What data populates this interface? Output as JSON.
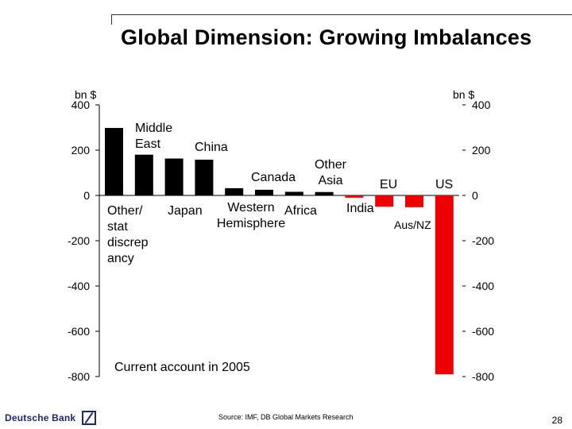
{
  "slide": {
    "title": "Global Dimension: Growing Imbalances",
    "source": "Source: IMF, DB Global Markets  Research",
    "page_number": "28",
    "brand": "Deutsche Bank"
  },
  "colors": {
    "surplus": "#000000",
    "deficit": "#ee0000",
    "axis": "#000000"
  },
  "chart_data": {
    "type": "bar",
    "title": "Current account in 2005",
    "ylabel_left": "bn $",
    "ylabel_right": "bn $",
    "ylim": [
      -800,
      400
    ],
    "yticks": [
      400,
      200,
      0,
      -200,
      -400,
      -600,
      -800
    ],
    "categories": [
      "Other/ stat discrep ancy",
      "Middle East",
      "Japan",
      "China",
      "Western Hemisphere",
      "Canada",
      "Africa",
      "Other Asia",
      "India",
      "EU",
      "Aus/NZ",
      "US"
    ],
    "values": [
      298,
      180,
      163,
      158,
      32,
      25,
      16,
      15,
      -10,
      -50,
      -52,
      -790
    ],
    "category_labels": [
      [
        "Other/",
        "stat",
        "discrep",
        "ancy"
      ],
      [
        "Middle",
        "East"
      ],
      [
        "Japan"
      ],
      [
        "China"
      ],
      [
        "Western",
        "Hemisphere"
      ],
      [
        "Canada"
      ],
      [
        "Africa"
      ],
      [
        "Other",
        "Asia"
      ],
      [
        "India"
      ],
      [
        "EU"
      ],
      [
        "Aus/NZ"
      ],
      [
        "US"
      ]
    ]
  }
}
